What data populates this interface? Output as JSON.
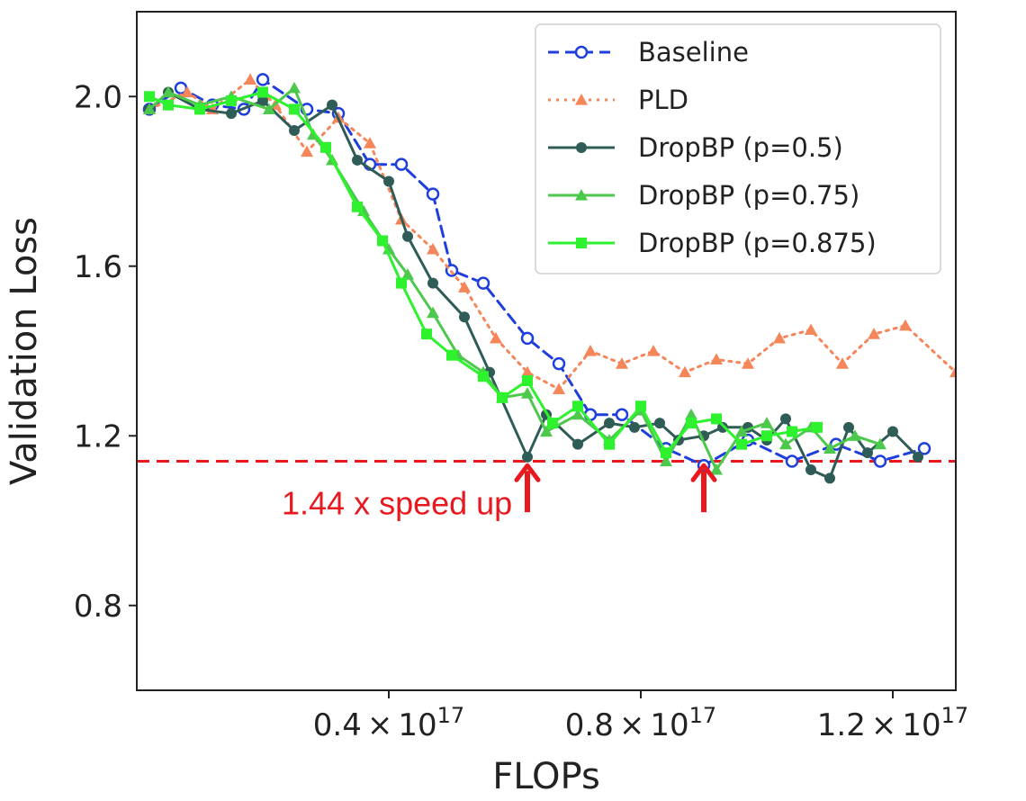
{
  "chart_data": {
    "type": "line",
    "xlabel": "FLOPs",
    "ylabel": "Validation Loss",
    "xlim": [
      0.0,
      1.3
    ],
    "ylim": [
      0.6,
      2.2
    ],
    "x_unit_note": "x values in units of 10^17 FLOPs",
    "xticks": [
      {
        "value": 0.4,
        "mantissa": "0.4",
        "times": "×",
        "base": "10",
        "exp": "17"
      },
      {
        "value": 0.8,
        "mantissa": "0.8",
        "times": "×",
        "base": "10",
        "exp": "17"
      },
      {
        "value": 1.2,
        "mantissa": "1.2",
        "times": "×",
        "base": "10",
        "exp": "17"
      }
    ],
    "yticks": [
      {
        "value": 0.8,
        "label": "0.8"
      },
      {
        "value": 1.2,
        "label": "1.2"
      },
      {
        "value": 1.6,
        "label": "1.6"
      },
      {
        "value": 2.0,
        "label": "2.0"
      }
    ],
    "legend_position": "top-right",
    "series": [
      {
        "name": "Baseline",
        "color": "#1f3fdc",
        "marker": "open-circle",
        "line": "dashed",
        "x": [
          0.02,
          0.07,
          0.12,
          0.17,
          0.2,
          0.27,
          0.32,
          0.37,
          0.42,
          0.47,
          0.5,
          0.55,
          0.62,
          0.67,
          0.72,
          0.77,
          0.84,
          0.9,
          0.97,
          1.04,
          1.11,
          1.18,
          1.25
        ],
        "y": [
          1.97,
          2.02,
          1.98,
          1.97,
          2.04,
          1.97,
          1.96,
          1.84,
          1.84,
          1.77,
          1.59,
          1.56,
          1.43,
          1.37,
          1.25,
          1.25,
          1.17,
          1.13,
          1.19,
          1.14,
          1.18,
          1.14,
          1.17
        ]
      },
      {
        "name": "PLD",
        "color": "#f5865a",
        "marker": "triangle",
        "line": "dotted",
        "x": [
          0.02,
          0.08,
          0.12,
          0.18,
          0.22,
          0.27,
          0.32,
          0.37,
          0.42,
          0.47,
          0.52,
          0.57,
          0.62,
          0.67,
          0.72,
          0.77,
          0.82,
          0.87,
          0.92,
          0.97,
          1.02,
          1.07,
          1.12,
          1.17,
          1.22,
          1.3
        ],
        "y": [
          1.97,
          2.01,
          1.97,
          2.04,
          1.98,
          1.87,
          1.95,
          1.89,
          1.71,
          1.64,
          1.55,
          1.43,
          1.35,
          1.31,
          1.4,
          1.37,
          1.4,
          1.35,
          1.38,
          1.37,
          1.43,
          1.45,
          1.37,
          1.44,
          1.46,
          1.35
        ]
      },
      {
        "name": "DropBP (p=0.5)",
        "color": "#2f5c56",
        "marker": "circle",
        "line": "solid",
        "x": [
          0.02,
          0.05,
          0.1,
          0.15,
          0.2,
          0.25,
          0.31,
          0.35,
          0.4,
          0.43,
          0.47,
          0.52,
          0.56,
          0.62,
          0.65,
          0.7,
          0.75,
          0.79,
          0.83,
          0.86,
          0.9,
          0.93,
          0.97,
          1.0,
          1.03,
          1.07,
          1.1,
          1.13,
          1.16,
          1.2,
          1.24
        ],
        "y": [
          1.97,
          2.01,
          1.97,
          1.96,
          1.99,
          1.92,
          1.98,
          1.85,
          1.8,
          1.67,
          1.56,
          1.48,
          1.35,
          1.15,
          1.25,
          1.18,
          1.23,
          1.22,
          1.23,
          1.19,
          1.2,
          1.22,
          1.22,
          1.19,
          1.24,
          1.12,
          1.1,
          1.22,
          1.16,
          1.21,
          1.15
        ]
      },
      {
        "name": "DropBP (p=0.75)",
        "color": "#4cc94c",
        "marker": "triangle",
        "line": "solid",
        "x": [
          0.02,
          0.05,
          0.1,
          0.15,
          0.21,
          0.25,
          0.28,
          0.31,
          0.36,
          0.4,
          0.43,
          0.47,
          0.51,
          0.55,
          0.58,
          0.62,
          0.65,
          0.7,
          0.75,
          0.8,
          0.84,
          0.88,
          0.92,
          0.96,
          1.0,
          1.03,
          1.07,
          1.1,
          1.14,
          1.18
        ],
        "y": [
          1.97,
          2.01,
          1.98,
          2.0,
          1.97,
          2.02,
          1.91,
          1.85,
          1.73,
          1.64,
          1.58,
          1.49,
          1.39,
          1.35,
          1.29,
          1.3,
          1.21,
          1.25,
          1.19,
          1.26,
          1.14,
          1.25,
          1.12,
          1.21,
          1.23,
          1.18,
          1.22,
          1.17,
          1.2,
          1.18
        ]
      },
      {
        "name": "DropBP (p=0.875)",
        "color": "#2ef22e",
        "marker": "square",
        "line": "solid",
        "x": [
          0.02,
          0.05,
          0.1,
          0.15,
          0.2,
          0.25,
          0.3,
          0.35,
          0.39,
          0.42,
          0.46,
          0.5,
          0.55,
          0.58,
          0.62,
          0.66,
          0.7,
          0.75,
          0.8,
          0.84,
          0.88,
          0.92,
          0.96,
          1.0,
          1.04,
          1.08
        ],
        "y": [
          2.0,
          1.98,
          1.97,
          1.99,
          2.01,
          1.97,
          1.88,
          1.74,
          1.66,
          1.56,
          1.44,
          1.39,
          1.34,
          1.29,
          1.33,
          1.23,
          1.27,
          1.18,
          1.27,
          1.16,
          1.23,
          1.24,
          1.18,
          1.2,
          1.21,
          1.22
        ]
      }
    ],
    "reference_line": {
      "y": 1.14,
      "color": "#e8191e",
      "style": "dashed"
    },
    "annotation": {
      "text": "1.44 x speed up",
      "color": "#e8191e",
      "text_anchor": {
        "x": 0.23,
        "y": 1.015
      },
      "arrows": [
        {
          "x": 0.62,
          "y_from": 1.02,
          "y_to": 1.13
        },
        {
          "x": 0.9,
          "y_from": 1.02,
          "y_to": 1.13
        }
      ]
    }
  }
}
